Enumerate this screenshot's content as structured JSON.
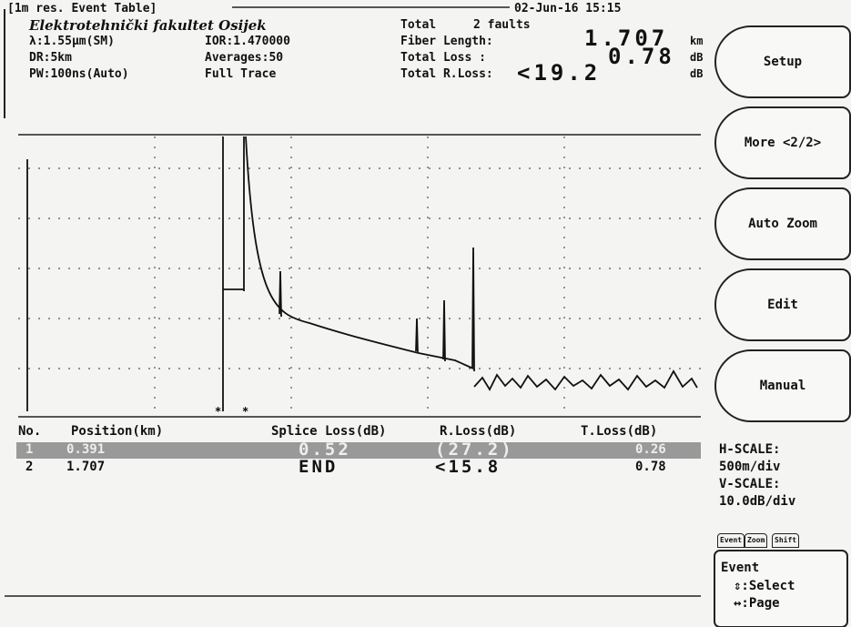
{
  "header": {
    "title": "[1m res. Event Table]",
    "datetime": "02-Jun-16 15:15"
  },
  "info": {
    "organization": "Elektrotehnički fakultet Osijek",
    "wavelength": "λ:1.55μm(SM)",
    "ior": "IOR:1.470000",
    "range": "DR:5km",
    "averages": "Averages:50",
    "pulse": "PW:100ns(Auto)",
    "trace": "Full Trace"
  },
  "summary": {
    "total_label": "Total",
    "total_value": "2 faults",
    "fiber_length_label": "Fiber Length:",
    "fiber_length": "1.707",
    "fiber_length_unit": "km",
    "total_loss_label": "Total Loss :",
    "total_loss": "0.78",
    "total_loss_unit": "dB",
    "total_rloss_label": "Total R.Loss:",
    "total_rloss": "<19.2",
    "total_rloss_unit": "dB"
  },
  "table": {
    "columns": [
      "No.",
      "Position(km)",
      "Splice Loss(dB)",
      "R.Loss(dB)",
      "T.Loss(dB)"
    ],
    "rows": [
      [
        "1",
        "0.391",
        "0.52",
        "(27.2)",
        "0.26"
      ],
      [
        "2",
        "1.707",
        "END",
        "<15.8",
        "0.78"
      ]
    ]
  },
  "softkeys": [
    "Setup",
    "More <2/2>",
    "Auto Zoom",
    "Edit",
    "Manual"
  ],
  "scale": {
    "h_label": "H-SCALE:",
    "h_value": "500m/div",
    "v_label": "V-SCALE:",
    "v_value": "10.0dB/div"
  },
  "tabs": [
    "Event",
    "Zoom",
    "Shift"
  ],
  "help": {
    "title": "Event",
    "select": "⇕:Select",
    "page": "↔:Page"
  }
}
